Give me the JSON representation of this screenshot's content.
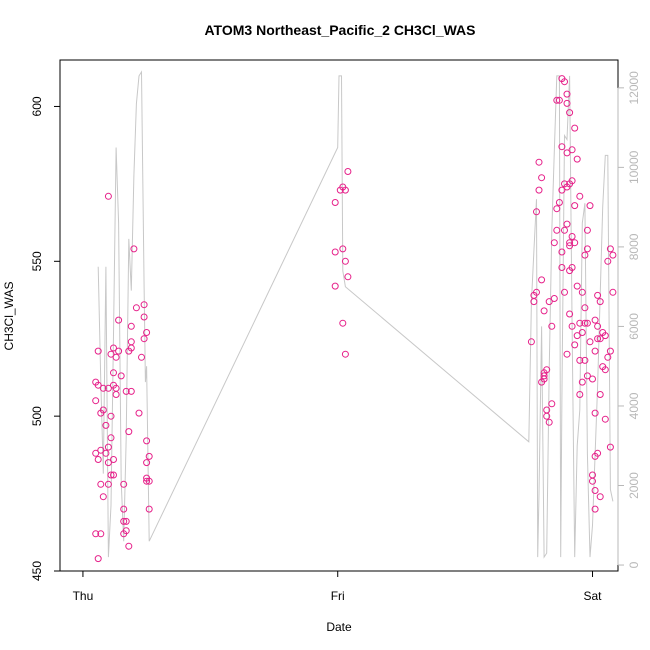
{
  "chart_data": {
    "type": "scatter",
    "title": "ATOM3 Northeast_Pacific_2 CH3Cl_WAS",
    "xlabel": "Date",
    "ylabel": "CH3Cl_WAS",
    "x_ticks": [
      "Thu",
      "Fri",
      "Sat"
    ],
    "ylim": [
      450,
      615
    ],
    "y_ticks": [
      450,
      500,
      550,
      600
    ],
    "y2lim": [
      -150,
      12700
    ],
    "y2_ticks": [
      0,
      2000,
      4000,
      6000,
      8000,
      10000,
      12000
    ],
    "grid": false,
    "legend": "none",
    "colors": {
      "points": "#e6218a",
      "line": "#c8c8c8",
      "right_axis": "#b8b8b8",
      "frame": "#000000"
    },
    "series": [
      {
        "values": [
          [
            -0.94,
            454
          ],
          [
            -0.95,
            462
          ],
          [
            -0.93,
            462
          ],
          [
            -0.92,
            474
          ],
          [
            -0.93,
            478
          ],
          [
            -0.95,
            488
          ],
          [
            -0.93,
            489
          ],
          [
            -0.94,
            486
          ],
          [
            -0.91,
            497
          ],
          [
            -0.92,
            502
          ],
          [
            -0.93,
            501
          ],
          [
            -0.95,
            505
          ],
          [
            -0.94,
            510
          ],
          [
            -0.92,
            509
          ],
          [
            -0.95,
            511
          ],
          [
            -0.94,
            521
          ],
          [
            -0.9,
            571
          ],
          [
            -0.89,
            481
          ],
          [
            -0.9,
            478
          ],
          [
            -0.88,
            481
          ],
          [
            -0.9,
            490
          ],
          [
            -0.89,
            493
          ],
          [
            -0.9,
            485
          ],
          [
            -0.88,
            486
          ],
          [
            -0.91,
            488
          ],
          [
            -0.89,
            500
          ],
          [
            -0.87,
            509
          ],
          [
            -0.88,
            510
          ],
          [
            -0.9,
            509
          ],
          [
            -0.88,
            514
          ],
          [
            -0.87,
            507
          ],
          [
            -0.89,
            520
          ],
          [
            -0.88,
            522
          ],
          [
            -0.86,
            521
          ],
          [
            -0.85,
            513
          ],
          [
            -0.87,
            519
          ],
          [
            -0.86,
            531
          ],
          [
            -0.84,
            478
          ],
          [
            -0.84,
            466
          ],
          [
            -0.83,
            466
          ],
          [
            -0.84,
            470
          ],
          [
            -0.84,
            462
          ],
          [
            -0.83,
            463
          ],
          [
            -0.82,
            458
          ],
          [
            -0.82,
            495
          ],
          [
            -0.83,
            508
          ],
          [
            -0.81,
            508
          ],
          [
            -0.82,
            521
          ],
          [
            -0.81,
            522
          ],
          [
            -0.81,
            524
          ],
          [
            -0.81,
            529
          ],
          [
            -0.8,
            554
          ],
          [
            -0.79,
            535
          ],
          [
            -0.78,
            501
          ],
          [
            -0.77,
            519
          ],
          [
            -0.76,
            536
          ],
          [
            -0.76,
            532
          ],
          [
            -0.75,
            527
          ],
          [
            -0.76,
            525
          ],
          [
            -0.75,
            492
          ],
          [
            -0.74,
            487
          ],
          [
            -0.75,
            485
          ],
          [
            -0.75,
            480
          ],
          [
            -0.74,
            479
          ],
          [
            -0.75,
            479
          ],
          [
            -0.74,
            470
          ],
          [
            -0.01,
            569
          ],
          [
            0.01,
            573
          ],
          [
            0.02,
            574
          ],
          [
            0.03,
            573
          ],
          [
            0.04,
            579
          ],
          [
            -0.01,
            553
          ],
          [
            0.02,
            554
          ],
          [
            0.03,
            550
          ],
          [
            0.04,
            545
          ],
          [
            -0.01,
            542
          ],
          [
            0.02,
            530
          ],
          [
            0.03,
            520
          ],
          [
            0.76,
            524
          ],
          [
            0.77,
            537
          ],
          [
            0.78,
            540
          ],
          [
            0.77,
            539
          ],
          [
            0.78,
            566
          ],
          [
            0.79,
            573
          ],
          [
            0.8,
            577
          ],
          [
            0.79,
            582
          ],
          [
            0.81,
            534
          ],
          [
            0.8,
            544
          ],
          [
            0.81,
            514
          ],
          [
            0.82,
            515
          ],
          [
            0.81,
            513
          ],
          [
            0.8,
            511
          ],
          [
            0.81,
            512
          ],
          [
            0.82,
            502
          ],
          [
            0.82,
            500
          ],
          [
            0.83,
            498
          ],
          [
            0.84,
            504
          ],
          [
            0.83,
            537
          ],
          [
            0.85,
            538
          ],
          [
            0.84,
            529
          ],
          [
            0.85,
            556
          ],
          [
            0.86,
            560
          ],
          [
            0.86,
            567
          ],
          [
            0.87,
            569
          ],
          [
            0.88,
            573
          ],
          [
            0.88,
            587
          ],
          [
            0.87,
            602
          ],
          [
            0.86,
            602
          ],
          [
            0.88,
            609
          ],
          [
            0.89,
            608
          ],
          [
            0.9,
            604
          ],
          [
            0.9,
            601
          ],
          [
            0.91,
            598
          ],
          [
            0.89,
            575
          ],
          [
            0.9,
            574
          ],
          [
            0.91,
            575
          ],
          [
            0.9,
            585
          ],
          [
            0.92,
            586
          ],
          [
            0.93,
            593
          ],
          [
            0.92,
            576
          ],
          [
            0.93,
            568
          ],
          [
            0.94,
            583
          ],
          [
            0.95,
            571
          ],
          [
            0.92,
            558
          ],
          [
            0.93,
            556
          ],
          [
            0.91,
            555
          ],
          [
            0.92,
            548
          ],
          [
            0.94,
            542
          ],
          [
            0.96,
            540
          ],
          [
            0.95,
            530
          ],
          [
            0.96,
            527
          ],
          [
            0.97,
            518
          ],
          [
            0.95,
            518
          ],
          [
            0.96,
            511
          ],
          [
            0.95,
            507
          ],
          [
            0.94,
            526
          ],
          [
            0.93,
            523
          ],
          [
            0.92,
            529
          ],
          [
            0.91,
            533
          ],
          [
            0.9,
            520
          ],
          [
            0.89,
            540
          ],
          [
            0.91,
            547
          ],
          [
            0.88,
            548
          ],
          [
            0.89,
            560
          ],
          [
            0.9,
            562
          ],
          [
            0.91,
            556
          ],
          [
            0.88,
            553
          ],
          [
            0.97,
            530
          ],
          [
            0.98,
            530
          ],
          [
            0.99,
            524
          ],
          [
            0.97,
            535
          ],
          [
            0.98,
            560
          ],
          [
            0.99,
            568
          ],
          [
            0.97,
            552
          ],
          [
            0.98,
            554
          ],
          [
            0.98,
            513
          ],
          [
            1.0,
            512
          ],
          [
            1.01,
            521
          ],
          [
            1.02,
            525
          ],
          [
            1.03,
            525
          ],
          [
            1.01,
            531
          ],
          [
            1.02,
            529
          ],
          [
            1.02,
            539
          ],
          [
            1.03,
            537
          ],
          [
            1.04,
            527
          ],
          [
            1.05,
            526
          ],
          [
            1.04,
            516
          ],
          [
            1.05,
            515
          ],
          [
            1.06,
            519
          ],
          [
            1.07,
            521
          ],
          [
            1.08,
            540
          ],
          [
            1.06,
            550
          ],
          [
            1.07,
            554
          ],
          [
            1.08,
            552
          ],
          [
            1.01,
            501
          ],
          [
            1.03,
            507
          ],
          [
            1.05,
            499
          ],
          [
            1.0,
            481
          ],
          [
            1.01,
            487
          ],
          [
            1.02,
            488
          ],
          [
            1.0,
            479
          ],
          [
            1.01,
            476
          ],
          [
            1.01,
            470
          ],
          [
            1.03,
            474
          ],
          [
            1.07,
            490
          ]
        ]
      },
      {
        "axis": "right",
        "values": [
          [
            -0.94,
            7500
          ],
          [
            -0.93,
            4600
          ],
          [
            -0.92,
            2300
          ],
          [
            -0.91,
            7500
          ],
          [
            -0.9,
            200
          ],
          [
            -0.89,
            1500
          ],
          [
            -0.88,
            5800
          ],
          [
            -0.87,
            10500
          ],
          [
            -0.86,
            8600
          ],
          [
            -0.85,
            2100
          ],
          [
            -0.84,
            600
          ],
          [
            -0.83,
            3200
          ],
          [
            -0.82,
            8200
          ],
          [
            -0.81,
            6900
          ],
          [
            -0.8,
            9800
          ],
          [
            -0.79,
            11600
          ],
          [
            -0.78,
            12300
          ],
          [
            -0.77,
            12400
          ],
          [
            -0.76,
            7000
          ],
          [
            -0.755,
            4600
          ],
          [
            -0.75,
            5000
          ],
          [
            -0.74,
            600
          ],
          [
            0.75,
            3100
          ],
          [
            0.76,
            6600
          ],
          [
            0.77,
            7900
          ],
          [
            0.78,
            9200
          ],
          [
            0.785,
            200
          ],
          [
            0.79,
            1800
          ],
          [
            0.8,
            6000
          ],
          [
            0.81,
            200
          ],
          [
            0.82,
            300
          ],
          [
            0.83,
            4900
          ],
          [
            0.84,
            8400
          ],
          [
            0.85,
            10400
          ],
          [
            0.86,
            12300
          ],
          [
            0.87,
            12300
          ],
          [
            0.875,
            200
          ],
          [
            0.88,
            4200
          ],
          [
            0.89,
            10800
          ],
          [
            0.9,
            10700
          ],
          [
            0.91,
            12300
          ],
          [
            0.92,
            6000
          ],
          [
            0.93,
            200
          ],
          [
            0.94,
            3000
          ],
          [
            0.95,
            3900
          ],
          [
            0.96,
            8600
          ],
          [
            0.97,
            9100
          ],
          [
            0.98,
            2800
          ],
          [
            0.99,
            200
          ],
          [
            1.0,
            1000
          ],
          [
            1.02,
            4500
          ],
          [
            1.04,
            9000
          ],
          [
            1.05,
            10300
          ],
          [
            1.06,
            10300
          ],
          [
            1.07,
            1900
          ],
          [
            1.08,
            1600
          ],
          [
            0.0,
            10500
          ],
          [
            0.005,
            12300
          ],
          [
            0.015,
            12300
          ],
          [
            0.02,
            7400
          ],
          [
            0.03,
            7000
          ]
        ]
      }
    ]
  }
}
